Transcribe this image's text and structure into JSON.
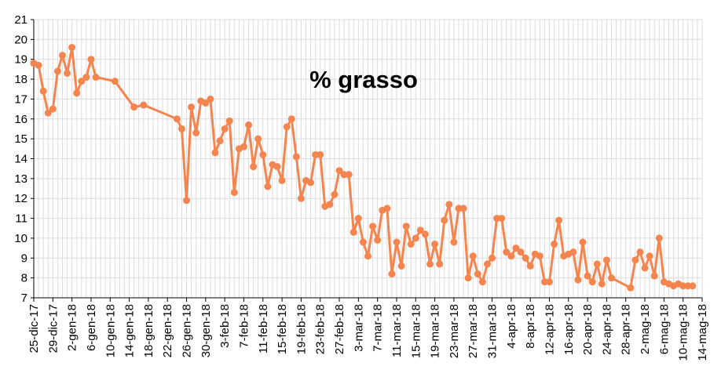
{
  "chart_data": {
    "type": "line",
    "title": "% grasso",
    "xlabel": "",
    "ylabel": "",
    "ylim": [
      7,
      21
    ],
    "yticks": [
      7,
      8,
      9,
      10,
      11,
      12,
      13,
      14,
      15,
      16,
      17,
      18,
      19,
      20,
      21
    ],
    "xlim": [
      "2017-12-25",
      "2018-05-14"
    ],
    "xtick_labels": [
      "25-dic-17",
      "29-dic-17",
      "2-gen-18",
      "6-gen-18",
      "10-gen-18",
      "14-gen-18",
      "18-gen-18",
      "22-gen-18",
      "26-gen-18",
      "30-gen-18",
      "3-feb-18",
      "7-feb-18",
      "11-feb-18",
      "15-feb-18",
      "19-feb-18",
      "23-feb-18",
      "27-feb-18",
      "3-mar-18",
      "7-mar-18",
      "11-mar-18",
      "15-mar-18",
      "19-mar-18",
      "23-mar-18",
      "27-mar-18",
      "31-mar-18",
      "4-apr-18",
      "8-apr-18",
      "12-apr-18",
      "16-apr-18",
      "20-apr-18",
      "24-apr-18",
      "28-apr-18",
      "2-mag-18",
      "6-mag-18",
      "10-mag-18",
      "14-mag-18"
    ],
    "grid": true,
    "legend": "none",
    "colors": {
      "series": "#f5854f",
      "grid": "#dcdcdc",
      "axis": "#000000"
    },
    "series": [
      {
        "points": [
          [
            "2017-12-25",
            18.8
          ],
          [
            "2017-12-26",
            18.7
          ],
          [
            "2017-12-27",
            17.4
          ],
          [
            "2017-12-28",
            16.3
          ],
          [
            "2017-12-29",
            16.5
          ],
          [
            "2017-12-30",
            18.4
          ],
          [
            "2017-12-31",
            19.2
          ],
          [
            "2018-01-01",
            18.3
          ],
          [
            "2018-01-02",
            19.6
          ],
          [
            "2018-01-03",
            17.3
          ],
          [
            "2018-01-04",
            17.9
          ],
          [
            "2018-01-05",
            18.1
          ],
          [
            "2018-01-06",
            19.0
          ],
          [
            "2018-01-07",
            18.1
          ],
          [
            "2018-01-11",
            17.9
          ],
          [
            "2018-01-15",
            16.6
          ],
          [
            "2018-01-17",
            16.7
          ],
          [
            "2018-01-24",
            16.0
          ],
          [
            "2018-01-25",
            15.5
          ],
          [
            "2018-01-26",
            11.9
          ],
          [
            "2018-01-27",
            16.6
          ],
          [
            "2018-01-28",
            15.3
          ],
          [
            "2018-01-29",
            16.9
          ],
          [
            "2018-01-30",
            16.8
          ],
          [
            "2018-01-31",
            17.0
          ],
          [
            "2018-02-01",
            14.3
          ],
          [
            "2018-02-02",
            14.9
          ],
          [
            "2018-02-03",
            15.5
          ],
          [
            "2018-02-04",
            15.9
          ],
          [
            "2018-02-05",
            12.3
          ],
          [
            "2018-02-06",
            14.5
          ],
          [
            "2018-02-07",
            14.6
          ],
          [
            "2018-02-08",
            15.7
          ],
          [
            "2018-02-09",
            13.6
          ],
          [
            "2018-02-10",
            15.0
          ],
          [
            "2018-02-11",
            14.2
          ],
          [
            "2018-02-12",
            12.6
          ],
          [
            "2018-02-13",
            13.7
          ],
          [
            "2018-02-14",
            13.6
          ],
          [
            "2018-02-15",
            12.9
          ],
          [
            "2018-02-16",
            15.6
          ],
          [
            "2018-02-17",
            16.0
          ],
          [
            "2018-02-18",
            14.1
          ],
          [
            "2018-02-19",
            12.0
          ],
          [
            "2018-02-20",
            12.9
          ],
          [
            "2018-02-21",
            12.8
          ],
          [
            "2018-02-22",
            14.2
          ],
          [
            "2018-02-23",
            14.2
          ],
          [
            "2018-02-24",
            11.6
          ],
          [
            "2018-02-25",
            11.7
          ],
          [
            "2018-02-26",
            12.2
          ],
          [
            "2018-02-27",
            13.4
          ],
          [
            "2018-02-28",
            13.2
          ],
          [
            "2018-03-01",
            13.2
          ],
          [
            "2018-03-02",
            10.3
          ],
          [
            "2018-03-03",
            11.0
          ],
          [
            "2018-03-04",
            9.8
          ],
          [
            "2018-03-05",
            9.1
          ],
          [
            "2018-03-06",
            10.6
          ],
          [
            "2018-03-07",
            9.9
          ],
          [
            "2018-03-08",
            11.4
          ],
          [
            "2018-03-09",
            11.5
          ],
          [
            "2018-03-10",
            8.2
          ],
          [
            "2018-03-11",
            9.8
          ],
          [
            "2018-03-12",
            8.6
          ],
          [
            "2018-03-13",
            10.6
          ],
          [
            "2018-03-14",
            9.7
          ],
          [
            "2018-03-15",
            10.0
          ],
          [
            "2018-03-16",
            10.4
          ],
          [
            "2018-03-17",
            10.2
          ],
          [
            "2018-03-18",
            8.7
          ],
          [
            "2018-03-19",
            9.7
          ],
          [
            "2018-03-20",
            8.7
          ],
          [
            "2018-03-21",
            10.9
          ],
          [
            "2018-03-22",
            11.7
          ],
          [
            "2018-03-23",
            9.8
          ],
          [
            "2018-03-24",
            11.5
          ],
          [
            "2018-03-25",
            11.5
          ],
          [
            "2018-03-26",
            8.0
          ],
          [
            "2018-03-27",
            9.1
          ],
          [
            "2018-03-28",
            8.2
          ],
          [
            "2018-03-29",
            7.8
          ],
          [
            "2018-03-30",
            8.7
          ],
          [
            "2018-03-31",
            9.0
          ],
          [
            "2018-04-01",
            11.0
          ],
          [
            "2018-04-02",
            11.0
          ],
          [
            "2018-04-03",
            9.3
          ],
          [
            "2018-04-04",
            9.1
          ],
          [
            "2018-04-05",
            9.5
          ],
          [
            "2018-04-06",
            9.3
          ],
          [
            "2018-04-07",
            9.0
          ],
          [
            "2018-04-08",
            8.6
          ],
          [
            "2018-04-09",
            9.2
          ],
          [
            "2018-04-10",
            9.1
          ],
          [
            "2018-04-11",
            7.8
          ],
          [
            "2018-04-12",
            7.8
          ],
          [
            "2018-04-13",
            9.7
          ],
          [
            "2018-04-14",
            10.9
          ],
          [
            "2018-04-15",
            9.1
          ],
          [
            "2018-04-16",
            9.2
          ],
          [
            "2018-04-17",
            9.3
          ],
          [
            "2018-04-18",
            7.9
          ],
          [
            "2018-04-19",
            9.8
          ],
          [
            "2018-04-20",
            8.1
          ],
          [
            "2018-04-21",
            7.8
          ],
          [
            "2018-04-22",
            8.7
          ],
          [
            "2018-04-23",
            7.7
          ],
          [
            "2018-04-24",
            8.9
          ],
          [
            "2018-04-25",
            8.0
          ],
          [
            "2018-04-29",
            7.5
          ],
          [
            "2018-04-30",
            8.9
          ],
          [
            "2018-05-01",
            9.3
          ],
          [
            "2018-05-02",
            8.5
          ],
          [
            "2018-05-03",
            9.1
          ],
          [
            "2018-05-04",
            8.1
          ],
          [
            "2018-05-05",
            10.0
          ],
          [
            "2018-05-06",
            7.8
          ],
          [
            "2018-05-07",
            7.7
          ],
          [
            "2018-05-08",
            7.6
          ],
          [
            "2018-05-09",
            7.7
          ],
          [
            "2018-05-10",
            7.6
          ],
          [
            "2018-05-11",
            7.6
          ],
          [
            "2018-05-12",
            7.6
          ]
        ]
      }
    ]
  }
}
